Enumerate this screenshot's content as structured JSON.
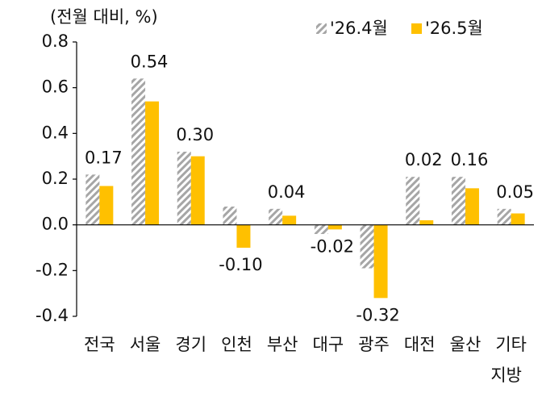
{
  "chart_data": {
    "type": "bar",
    "y_label": "(전월 대비, %)",
    "categories": [
      "전국",
      "서울",
      "경기",
      "인천",
      "부산",
      "대구",
      "광주",
      "대전",
      "울산",
      "기타 지방"
    ],
    "series": [
      {
        "name": "'26.4월",
        "color": "#a6a6a6",
        "pattern": "hatch",
        "values": [
          0.22,
          0.64,
          0.32,
          0.08,
          0.07,
          -0.04,
          -0.19,
          0.21,
          0.21,
          0.07
        ]
      },
      {
        "name": "'26.5월",
        "color": "#ffc000",
        "values": [
          0.17,
          0.54,
          0.3,
          -0.1,
          0.04,
          -0.02,
          -0.32,
          0.02,
          0.16,
          0.05
        ],
        "value_labels": [
          "0.17",
          "0.54",
          "0.30",
          "-0.10",
          "0.04",
          "-0.02",
          "-0.32",
          "0.02",
          "0.16",
          "0.05"
        ]
      }
    ],
    "ylim": [
      -0.4,
      0.8
    ],
    "yticks": [
      -0.4,
      -0.2,
      {
        "value": 0,
        "label": "0.0"
      },
      0.2,
      0.4,
      0.6,
      0.8
    ],
    "legend": "top-right"
  }
}
